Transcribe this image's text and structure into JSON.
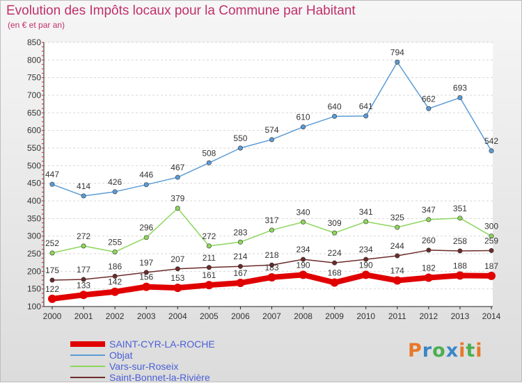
{
  "header": {
    "title": "Evolution des Impôts locaux pour la Commune par Habitant",
    "subtitle": "(en € et par an)"
  },
  "logo": {
    "text": "Proxiti",
    "letter_colors": [
      "#e8782a",
      "#3a86c8",
      "#4caf50",
      "#3a86c8",
      "#e8782a",
      "#4caf50",
      "#e8782a"
    ]
  },
  "chart_data": {
    "type": "line",
    "x": [
      2000,
      2001,
      2002,
      2003,
      2004,
      2005,
      2006,
      2007,
      2008,
      2009,
      2010,
      2011,
      2012,
      2013,
      2014
    ],
    "ylim": [
      100,
      850
    ],
    "yticks": [
      100,
      150,
      200,
      250,
      300,
      350,
      400,
      450,
      500,
      550,
      600,
      650,
      700,
      750,
      800,
      850
    ],
    "grid": "horizontal",
    "legend_position": "bottom-left",
    "series": [
      {
        "name": "SAINT-CYR-LA-ROCHE",
        "color": "#e00000",
        "values": [
          122,
          133,
          142,
          156,
          153,
          161,
          167,
          183,
          190,
          168,
          190,
          174,
          182,
          188,
          187
        ]
      },
      {
        "name": "Objat",
        "color": "#5b9bd5",
        "values": [
          447,
          414,
          426,
          446,
          467,
          508,
          550,
          574,
          610,
          640,
          641,
          794,
          662,
          693,
          542
        ]
      },
      {
        "name": "Vars-sur-Roseix",
        "color": "#8dd65c",
        "values": [
          252,
          272,
          255,
          296,
          379,
          272,
          283,
          317,
          340,
          309,
          341,
          325,
          347,
          351,
          300
        ]
      },
      {
        "name": "Saint-Bonnet-la-Rivière",
        "color": "#6b2a2a",
        "values": [
          175,
          177,
          186,
          197,
          207,
          211,
          214,
          218,
          234,
          224,
          234,
          244,
          260,
          258,
          259
        ]
      }
    ]
  }
}
